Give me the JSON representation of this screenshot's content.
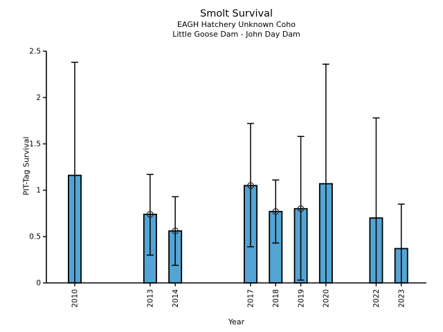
{
  "chart_data": {
    "type": "bar",
    "title": "Smolt Survival",
    "subtitle": [
      "EAGH Hatchery Unknown Coho",
      "Little Goose Dam - John Day Dam"
    ],
    "xlabel": "Year",
    "ylabel": "PIT-Tag Survival",
    "categories": [
      2010,
      2013,
      2014,
      2017,
      2018,
      2019,
      2020,
      2022,
      2023
    ],
    "values": [
      1.16,
      0.74,
      0.56,
      1.05,
      0.77,
      0.8,
      1.07,
      0.7,
      0.37
    ],
    "error_high": [
      2.38,
      1.17,
      0.93,
      1.72,
      1.11,
      1.58,
      2.36,
      1.78,
      0.85
    ],
    "error_low": [
      0,
      0.3,
      0.19,
      0.39,
      0.43,
      0.03,
      0,
      0,
      0
    ],
    "point_markers": [
      false,
      true,
      true,
      true,
      true,
      true,
      false,
      false,
      false
    ],
    "xlim": [
      2008.87,
      2024.0
    ],
    "ylim": [
      0,
      2.5
    ],
    "yticks": [
      0,
      0.5,
      1,
      1.5,
      2,
      2.5
    ],
    "ytick_labels": [
      "0",
      "0.5",
      "1",
      "1.5",
      "2",
      "2.5"
    ],
    "xtick_labels": [
      "2010",
      "2013",
      "2014",
      "2017",
      "2018",
      "2019",
      "2020",
      "2022",
      "2023"
    ],
    "bar_width_years": 0.5,
    "grid": false,
    "legend": null,
    "colors": {
      "bar_fill": "#54a4d4",
      "bar_edge": "#000000",
      "error_bar": "#000000",
      "marker_edge": "#2b2b2b",
      "axis": "#000000",
      "text": "#000000",
      "background": "#ffffff"
    }
  }
}
